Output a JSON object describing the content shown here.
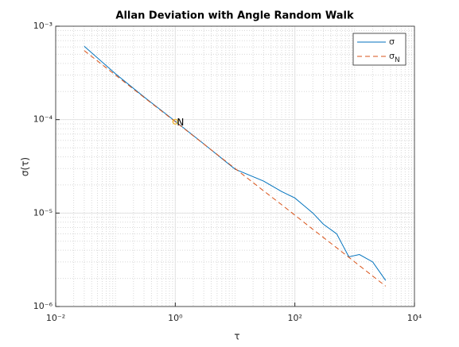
{
  "chart_data": {
    "type": "line",
    "title": "Allan Deviation with Angle Random Walk",
    "x_label": "τ",
    "y_label": "σ(τ)",
    "x": [
      0.03,
      0.1,
      0.3,
      1,
      3,
      10,
      30,
      60,
      100,
      200,
      300,
      500,
      800,
      1200,
      2000,
      3300
    ],
    "series": [
      {
        "name": "σ",
        "color": "#0072bd",
        "dash": false,
        "values": [
          0.00061,
          0.00031,
          0.000175,
          9.6e-05,
          5.5e-05,
          2.95e-05,
          2.2e-05,
          1.7e-05,
          1.45e-05,
          1e-05,
          7.6e-06,
          6e-06,
          3.4e-06,
          3.6e-06,
          3e-06,
          1.9e-06
        ]
      },
      {
        "name": "σN",
        "color": "#d95319",
        "dash": true,
        "values": [
          0.000548,
          0.0003,
          0.000173,
          9.5e-05,
          5.48e-05,
          3e-05,
          1.73e-05,
          1.23e-05,
          9.5e-06,
          6.7e-06,
          5.48e-06,
          4.25e-06,
          3.36e-06,
          2.74e-06,
          2.12e-06,
          1.65e-06
        ]
      }
    ],
    "annotation": {
      "text": "N",
      "x": 1,
      "y": 9.5e-05,
      "color": "#edb120"
    },
    "xlim": [
      0.01,
      10000
    ],
    "ylim": [
      1e-06,
      0.001
    ],
    "xticks": [
      {
        "value": 0.01,
        "label": "10⁻²"
      },
      {
        "value": 1,
        "label": "10⁰"
      },
      {
        "value": 100,
        "label": "10²"
      },
      {
        "value": 10000,
        "label": "10⁴"
      }
    ],
    "yticks": [
      {
        "value": 1e-06,
        "label": "10⁻⁶"
      },
      {
        "value": 1e-05,
        "label": "10⁻⁵"
      },
      {
        "value": 0.0001,
        "label": "10⁻⁴"
      },
      {
        "value": 0.001,
        "label": "10⁻³"
      }
    ],
    "xscale": "log",
    "yscale": "log",
    "grid": true,
    "minor_grid": true,
    "legend": "upper right"
  }
}
